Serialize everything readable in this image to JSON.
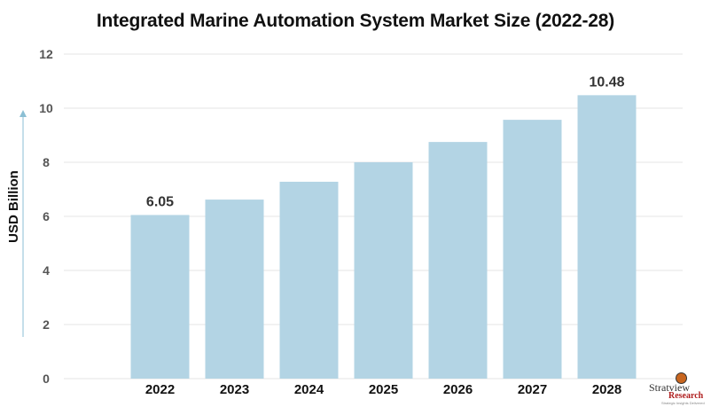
{
  "chart_data": {
    "type": "bar",
    "title": "Integrated Marine Automation System Market Size (2022-28)",
    "xlabel": "",
    "ylabel": "USD Billion",
    "categories": [
      "2022",
      "2023",
      "2024",
      "2025",
      "2026",
      "2027",
      "2028"
    ],
    "values": [
      6.05,
      6.62,
      7.28,
      8.0,
      8.75,
      9.57,
      10.48
    ],
    "data_labels": [
      "6.05",
      "",
      "",
      "",
      "",
      "",
      "10.48"
    ],
    "ylim": [
      0,
      12
    ],
    "yticks": [
      0,
      2,
      4,
      6,
      8,
      10,
      12
    ],
    "ytick_labels": [
      "0",
      "2",
      "4",
      "6",
      "8",
      "10",
      "12"
    ],
    "grid": true,
    "bar_color": "#b3d4e4",
    "grid_color": "#e6e6e6",
    "axis_arrow_color": "#8bbfd4"
  },
  "logo": {
    "line1": "Stratview",
    "line2": "Research",
    "tagline": "Strategic Insights Delivered"
  }
}
